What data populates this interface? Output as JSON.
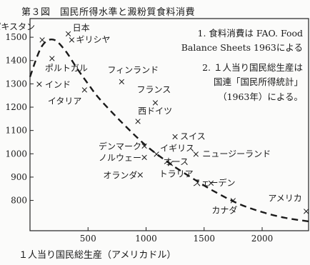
{
  "figure": {
    "title": "第３図　国民所得水準と澱粉質食料消費",
    "x_axis_label": "１人当り国民総生産（アメリカドル）"
  },
  "chart_data": {
    "type": "scatter",
    "title": "第３図　国民所得水準と澱粉質食料消費",
    "xlabel": "１人当り国民総生産（アメリカドル）",
    "ylabel": "",
    "xlim": [
      0,
      2400
    ],
    "ylim": [
      670,
      1580
    ],
    "xticks": [
      500,
      1000,
      1500,
      2000
    ],
    "yticks": [
      800,
      900,
      1000,
      1100,
      1200,
      1300,
      1400,
      1500
    ],
    "grid": false,
    "points": [
      {
        "label": "パキスタン",
        "x": 105,
        "y": 1490
      },
      {
        "label": "日本",
        "x": 330,
        "y": 1515
      },
      {
        "label": "ギリシヤ",
        "x": 360,
        "y": 1490
      },
      {
        "label": "インド",
        "x": 80,
        "y": 1300
      },
      {
        "label": "ポルトガル",
        "x": 190,
        "y": 1410
      },
      {
        "label": "イタリア",
        "x": 470,
        "y": 1275
      },
      {
        "label": "フィンランド",
        "x": 790,
        "y": 1310
      },
      {
        "label": "フランス",
        "x": 1080,
        "y": 1220
      },
      {
        "label": "西ドイツ",
        "x": 930,
        "y": 1140
      },
      {
        "label": "スイス",
        "x": 1250,
        "y": 1075
      },
      {
        "label": "デンマーク",
        "x": 985,
        "y": 1035
      },
      {
        "label": "イギリス",
        "x": 1090,
        "y": 1000
      },
      {
        "label": "ノルウェー",
        "x": 985,
        "y": 985
      },
      {
        "label": "オランダ",
        "x": 950,
        "y": 910
      },
      {
        "label": "オーストラリア",
        "x": 1210,
        "y": 960
      },
      {
        "label": "ニュージーランド",
        "x": 1430,
        "y": 1000
      },
      {
        "label": "スェーデン",
        "x": 1560,
        "y": 875
      },
      {
        "label": "カナダ",
        "x": 1750,
        "y": 800
      },
      {
        "label": "アメリカ",
        "x": 2380,
        "y": 755
      }
    ],
    "trend": {
      "style": "dashed",
      "x": [
        0,
        100,
        200,
        300,
        400,
        500,
        600,
        800,
        1000,
        1200,
        1400,
        1600,
        1800,
        2000,
        2200,
        2400
      ],
      "y": [
        1330,
        1460,
        1490,
        1445,
        1370,
        1300,
        1235,
        1130,
        1035,
        960,
        895,
        835,
        785,
        750,
        725,
        710
      ]
    },
    "annotations": [
      "1.  食料消費は  FAO.  Food",
      "Balance Sheets 1963による",
      "2.  １人当り国民総生産は",
      "国連「国民所得統計」",
      "（1963年）による。"
    ]
  }
}
